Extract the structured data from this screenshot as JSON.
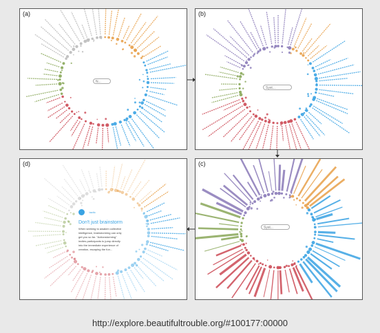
{
  "panels": {
    "a": {
      "label": "(a)",
      "search": "N..."
    },
    "b": {
      "label": "(b)",
      "search": "Syst..."
    },
    "c": {
      "label": "(c)",
      "search": "Syst..."
    },
    "d": {
      "label": "(d)"
    }
  },
  "card": {
    "brand": "tactic",
    "title": "Don't just brainstorm",
    "body": "When seeking to awaken collective intelligence, brainstorming can only get you so far. \"Actionstorming\" invites participants to jump directly into the immediate experience of creation, escaping the fun..."
  },
  "colors": {
    "orange": "#e8a04a",
    "blue": "#3aa3e3",
    "red": "#cc4a55",
    "green": "#8aa85a",
    "purple": "#8a7ab8",
    "gray": "#bbbbbb"
  },
  "footer": {
    "url": "http://explore.beautifultrouble.org/#100177:00000"
  }
}
